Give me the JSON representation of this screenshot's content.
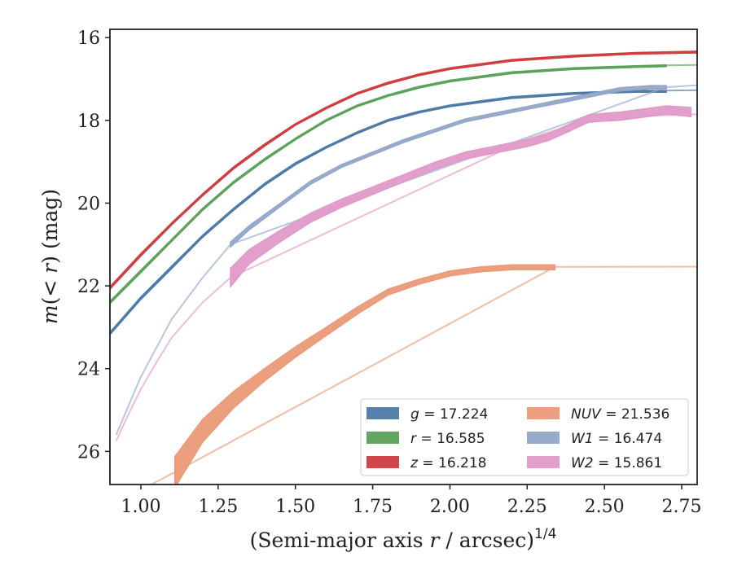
{
  "chart_data": {
    "type": "line",
    "xlabel_text": "(Semi-major axis ",
    "xlabel_var": "r",
    "xlabel_tail": " / arcsec)",
    "xlabel_power": "1/4",
    "ylabel_pre": "m",
    "ylabel_mid": "(< ",
    "ylabel_var": "r",
    "ylabel_post": ") (mag)",
    "xlim": [
      0.9,
      2.8
    ],
    "ylim": [
      26.8,
      15.8
    ],
    "y_inverted": true,
    "xticks": [
      "1.00",
      "1.25",
      "1.50",
      "1.75",
      "2.00",
      "2.25",
      "2.50",
      "2.75"
    ],
    "xtick_values": [
      1.0,
      1.25,
      1.5,
      1.75,
      2.0,
      2.25,
      2.5,
      2.75
    ],
    "yticks": [
      "16",
      "18",
      "20",
      "22",
      "24",
      "26"
    ],
    "ytick_values": [
      16,
      18,
      20,
      22,
      24,
      26
    ],
    "grid": false,
    "legend_position": "bottom-right",
    "series": [
      {
        "name": "g = 17.224",
        "symbol": "g",
        "value": "17.224",
        "color": "#4c7aa8",
        "x": [
          0.9,
          1.0,
          1.1,
          1.2,
          1.3,
          1.4,
          1.5,
          1.6,
          1.7,
          1.8,
          1.9,
          2.0,
          2.2,
          2.4,
          2.6,
          2.7
        ],
        "y": [
          23.15,
          22.3,
          21.55,
          20.8,
          20.15,
          19.55,
          19.05,
          18.65,
          18.3,
          18.0,
          17.8,
          17.65,
          17.45,
          17.35,
          17.3,
          17.3
        ],
        "width": [
          0.06,
          0.06,
          0.06,
          0.05,
          0.05,
          0.05,
          0.05,
          0.04,
          0.04,
          0.04,
          0.04,
          0.04,
          0.04,
          0.04,
          0.04,
          0.04
        ],
        "ext_x": [
          2.7,
          2.8
        ],
        "ext_y": [
          17.28,
          17.27
        ]
      },
      {
        "name": "r = 16.585",
        "symbol": "r",
        "value": "16.585",
        "color": "#5aa15a",
        "x": [
          0.9,
          1.0,
          1.1,
          1.2,
          1.3,
          1.4,
          1.5,
          1.6,
          1.7,
          1.8,
          1.9,
          2.0,
          2.2,
          2.4,
          2.6,
          2.7
        ],
        "y": [
          22.4,
          21.65,
          20.9,
          20.15,
          19.5,
          18.95,
          18.45,
          18.0,
          17.65,
          17.4,
          17.2,
          17.05,
          16.85,
          16.75,
          16.7,
          16.68
        ],
        "width": [
          0.06,
          0.06,
          0.05,
          0.05,
          0.05,
          0.05,
          0.04,
          0.04,
          0.04,
          0.04,
          0.04,
          0.04,
          0.04,
          0.04,
          0.04,
          0.04
        ],
        "ext_x": [
          2.7,
          2.8
        ],
        "ext_y": [
          16.67,
          16.66
        ]
      },
      {
        "name": "z = 16.218",
        "symbol": "z",
        "value": "16.218",
        "color": "#cf3c3e",
        "x": [
          0.9,
          1.0,
          1.1,
          1.2,
          1.3,
          1.4,
          1.5,
          1.6,
          1.7,
          1.8,
          1.9,
          2.0,
          2.2,
          2.4,
          2.6,
          2.8
        ],
        "y": [
          22.05,
          21.25,
          20.5,
          19.8,
          19.15,
          18.6,
          18.1,
          17.7,
          17.35,
          17.1,
          16.9,
          16.75,
          16.55,
          16.45,
          16.38,
          16.35
        ],
        "width": [
          0.06,
          0.06,
          0.05,
          0.05,
          0.05,
          0.05,
          0.04,
          0.04,
          0.04,
          0.04,
          0.04,
          0.04,
          0.04,
          0.04,
          0.04,
          0.04
        ],
        "ext_x": [],
        "ext_y": []
      },
      {
        "name": "NUV = 21.536",
        "symbol": "NUV",
        "value": "21.536",
        "color": "#ea9a78",
        "x": [
          1.11,
          1.2,
          1.3,
          1.4,
          1.5,
          1.6,
          1.7,
          1.8,
          1.9,
          2.0,
          2.1,
          2.2,
          2.34
        ],
        "y": [
          26.5,
          25.5,
          24.75,
          24.15,
          23.6,
          23.1,
          22.6,
          22.15,
          21.9,
          21.7,
          21.6,
          21.55,
          21.55
        ],
        "width": [
          0.75,
          0.55,
          0.4,
          0.3,
          0.25,
          0.2,
          0.17,
          0.14,
          0.12,
          0.12,
          0.12,
          0.12,
          0.12
        ],
        "ext_x": [
          1.02,
          1.06,
          1.11,
          2.34,
          2.8
        ],
        "ext_y": [
          26.85,
          26.7,
          26.5,
          21.54,
          21.536
        ]
      },
      {
        "name": "W1 = 16.474",
        "symbol": "W1",
        "value": "16.474",
        "color": "#94a7c8",
        "x": [
          1.29,
          1.35,
          1.45,
          1.55,
          1.65,
          1.75,
          1.85,
          1.95,
          2.05,
          2.15,
          2.25,
          2.35,
          2.45,
          2.55,
          2.65,
          2.7
        ],
        "y": [
          21.0,
          20.6,
          20.05,
          19.5,
          19.1,
          18.8,
          18.5,
          18.25,
          18.0,
          17.85,
          17.7,
          17.55,
          17.4,
          17.25,
          17.2,
          17.2
        ],
        "width": [
          0.12,
          0.1,
          0.08,
          0.08,
          0.07,
          0.07,
          0.07,
          0.07,
          0.07,
          0.07,
          0.07,
          0.08,
          0.08,
          0.08,
          0.08,
          0.08
        ],
        "ext_x": [
          0.92,
          0.96,
          1.0,
          1.05,
          1.1,
          1.2,
          1.29,
          2.7,
          2.8
        ],
        "ext_y": [
          25.6,
          24.9,
          24.2,
          23.5,
          22.8,
          21.8,
          21.0,
          17.2,
          17.15
        ]
      },
      {
        "name": "W2 = 15.861",
        "symbol": "W2",
        "value": "15.861",
        "color": "#e19ac8",
        "x": [
          1.29,
          1.35,
          1.45,
          1.55,
          1.65,
          1.75,
          1.85,
          1.95,
          2.05,
          2.15,
          2.25,
          2.32,
          2.38,
          2.45,
          2.55,
          2.65,
          2.7,
          2.78
        ],
        "y": [
          21.8,
          21.3,
          20.8,
          20.35,
          20.0,
          19.7,
          19.4,
          19.1,
          18.85,
          18.7,
          18.55,
          18.4,
          18.2,
          17.95,
          17.9,
          17.8,
          17.75,
          17.8
        ],
        "width": [
          0.45,
          0.35,
          0.28,
          0.22,
          0.2,
          0.18,
          0.17,
          0.17,
          0.17,
          0.17,
          0.17,
          0.17,
          0.17,
          0.18,
          0.2,
          0.2,
          0.2,
          0.22
        ],
        "ext_x": [
          0.92,
          0.96,
          1.0,
          1.05,
          1.1,
          1.2,
          1.29,
          2.25,
          2.4,
          2.6,
          2.8
        ],
        "ext_y": [
          25.75,
          25.1,
          24.5,
          23.85,
          23.25,
          22.4,
          21.8,
          18.45,
          18.1,
          17.9,
          17.85
        ]
      }
    ]
  }
}
